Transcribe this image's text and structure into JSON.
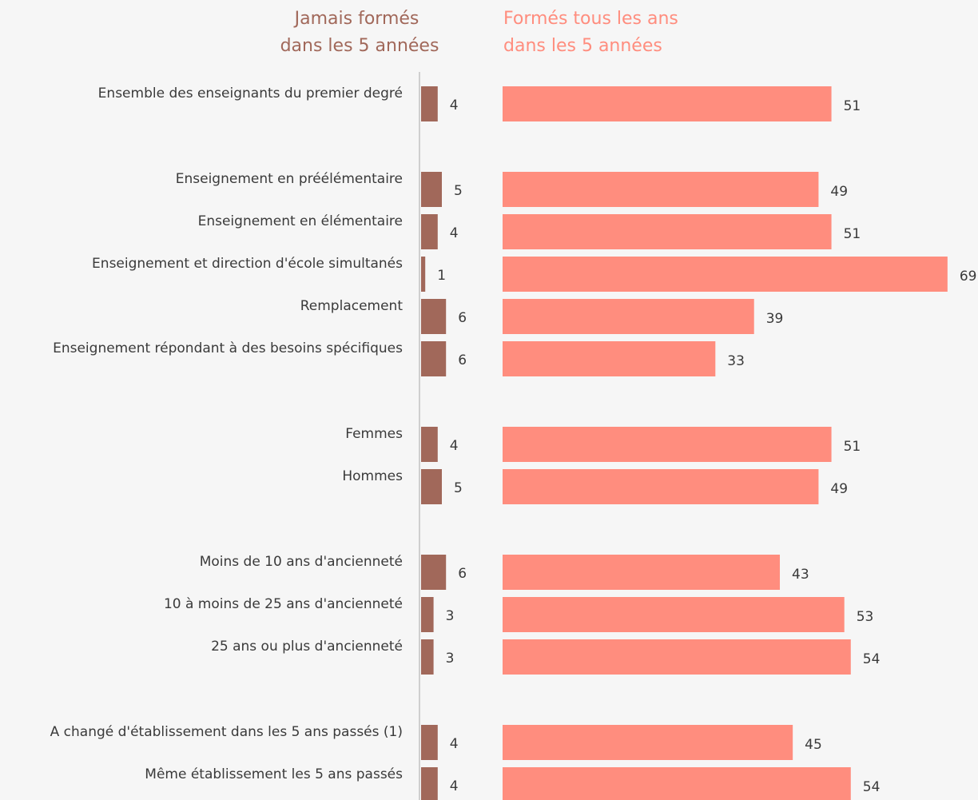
{
  "chart_data": {
    "type": "bar",
    "legend": {
      "jamais": [
        "Jamais formés",
        "dans les 5 années"
      ],
      "formes": [
        "Formés tous les ans",
        "dans les 5 années"
      ]
    },
    "colors": {
      "jamais": "#a1685a",
      "formes": "#ff8d7e",
      "axis": "#cfcfcf",
      "background": "#f6f6f6"
    },
    "categories": [
      "Ensemble des enseignants du premier degré",
      "Enseignement en préélémentaire",
      "Enseignement en élémentaire",
      "Enseignement et direction d'école simultanés",
      "Remplacement",
      "Enseignement répondant à des besoins spécifiques",
      "Femmes",
      "Hommes",
      "Moins de 10 ans d'ancienneté",
      "10 à moins de 25 ans d'ancienneté",
      "25 ans ou plus d'ancienneté",
      "A changé d'établissement dans les 5 ans passés (1)",
      "Même établissement les 5 ans passés"
    ],
    "groups": [
      0,
      1,
      1,
      1,
      1,
      1,
      2,
      2,
      3,
      3,
      3,
      4,
      4
    ],
    "series": [
      {
        "name": "Jamais formés dans les 5 années",
        "values": [
          4,
          5,
          4,
          1,
          6,
          6,
          4,
          5,
          6,
          3,
          3,
          4,
          4
        ]
      },
      {
        "name": "Formés tous les ans dans les 5 années",
        "values": [
          51,
          49,
          51,
          69,
          39,
          33,
          51,
          49,
          43,
          53,
          54,
          45,
          54
        ]
      }
    ]
  }
}
